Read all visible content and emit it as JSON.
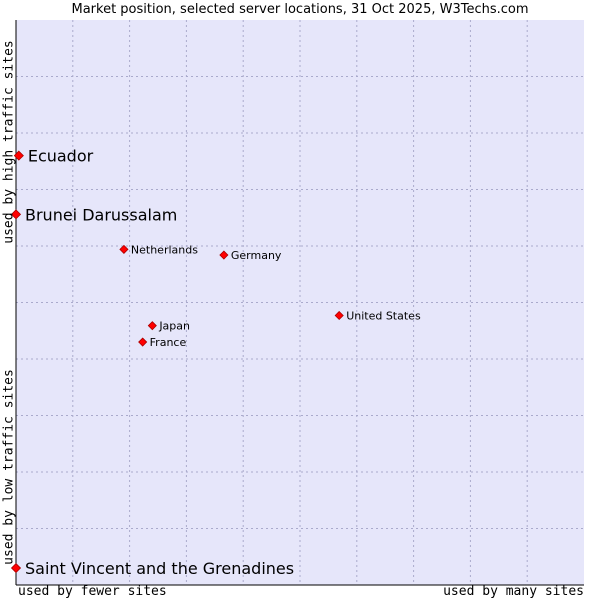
{
  "chart_data": {
    "type": "scatter",
    "title": "Market position, selected server locations, 31 Oct 2025, W3Techs.com",
    "xlabel_low": "used by fewer sites",
    "xlabel_high": "used by many sites",
    "ylabel_low": "used by low traffic sites",
    "ylabel_high": "used by high traffic sites",
    "xlim": [
      0,
      100
    ],
    "ylim": [
      0,
      100
    ],
    "grid": true,
    "colors": {
      "plot_bg": "#e6e6fa",
      "grid": "#aaaacc",
      "axis": "#000000",
      "point": "#ff0000",
      "point_edge": "#aa0000"
    },
    "points": [
      {
        "label": "Ecuador",
        "x": 0.5,
        "y": 76.0,
        "emphasis": true
      },
      {
        "label": "Brunei Darussalam",
        "x": 0.0,
        "y": 65.6,
        "emphasis": true
      },
      {
        "label": "Netherlands",
        "x": 19.0,
        "y": 59.4,
        "emphasis": false
      },
      {
        "label": "Germany",
        "x": 36.6,
        "y": 58.4,
        "emphasis": false
      },
      {
        "label": "United States",
        "x": 56.9,
        "y": 47.7,
        "emphasis": false
      },
      {
        "label": "Japan",
        "x": 24.0,
        "y": 45.9,
        "emphasis": false
      },
      {
        "label": "France",
        "x": 22.3,
        "y": 43.0,
        "emphasis": false
      },
      {
        "label": "Saint Vincent and the Grenadines",
        "x": 0.0,
        "y": 3.0,
        "emphasis": true
      }
    ]
  }
}
